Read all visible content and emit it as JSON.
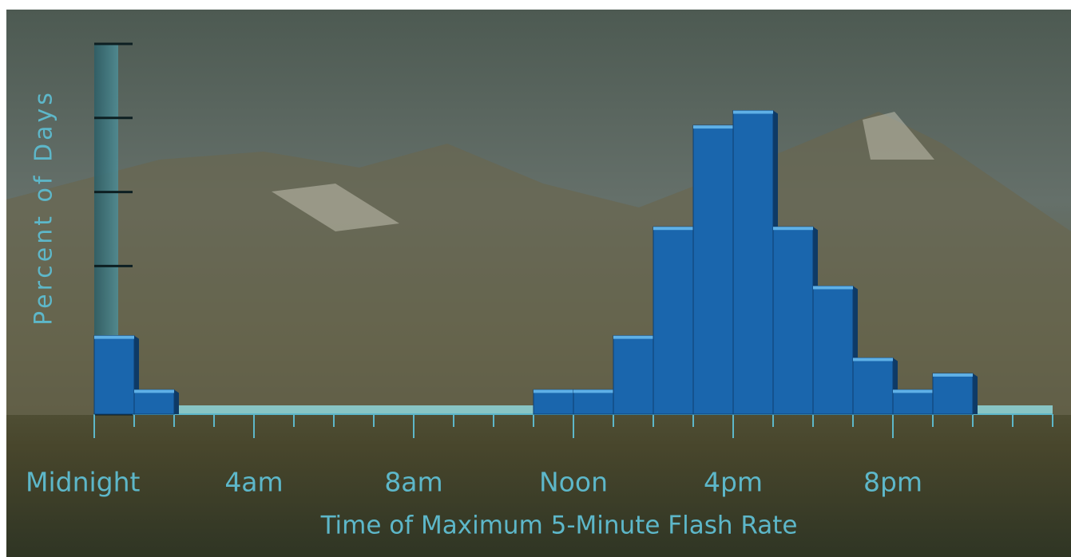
{
  "chart_data": {
    "type": "histogram",
    "y_label": "Percent of Days",
    "x_label": "Time of Maximum 5-Minute Flash Rate",
    "bins": [
      0,
      1,
      2,
      3,
      4,
      5,
      6,
      7,
      8,
      9,
      10,
      11,
      12,
      13,
      14,
      15,
      16,
      17,
      18,
      19,
      20,
      21,
      22,
      23,
      24
    ],
    "values": [
      1.06,
      0.33,
      0,
      0,
      0,
      0,
      0,
      0,
      0,
      0,
      0,
      0.33,
      0.33,
      1.06,
      2.53,
      3.9,
      4.1,
      2.53,
      1.73,
      0.76,
      0.33,
      0.55,
      0,
      0
    ],
    "color": "#1a66ad",
    "xlim": [
      0,
      24
    ],
    "xticks": [
      {
        "value": 0,
        "label": "Midnight"
      },
      {
        "value": 4,
        "label": "4am"
      },
      {
        "value": 8,
        "label": "8am"
      },
      {
        "value": 12,
        "label": "Noon"
      },
      {
        "value": 16,
        "label": "4pm"
      },
      {
        "value": 20,
        "label": "8pm"
      }
    ],
    "x_minor_ticks": [
      1,
      2,
      3,
      5,
      6,
      7,
      9,
      10,
      11,
      13,
      14,
      15,
      17,
      18,
      19,
      21,
      22,
      23,
      24
    ],
    "ylim": [
      0,
      5
    ],
    "yticks": [
      0,
      1,
      2,
      3,
      4,
      5
    ]
  }
}
